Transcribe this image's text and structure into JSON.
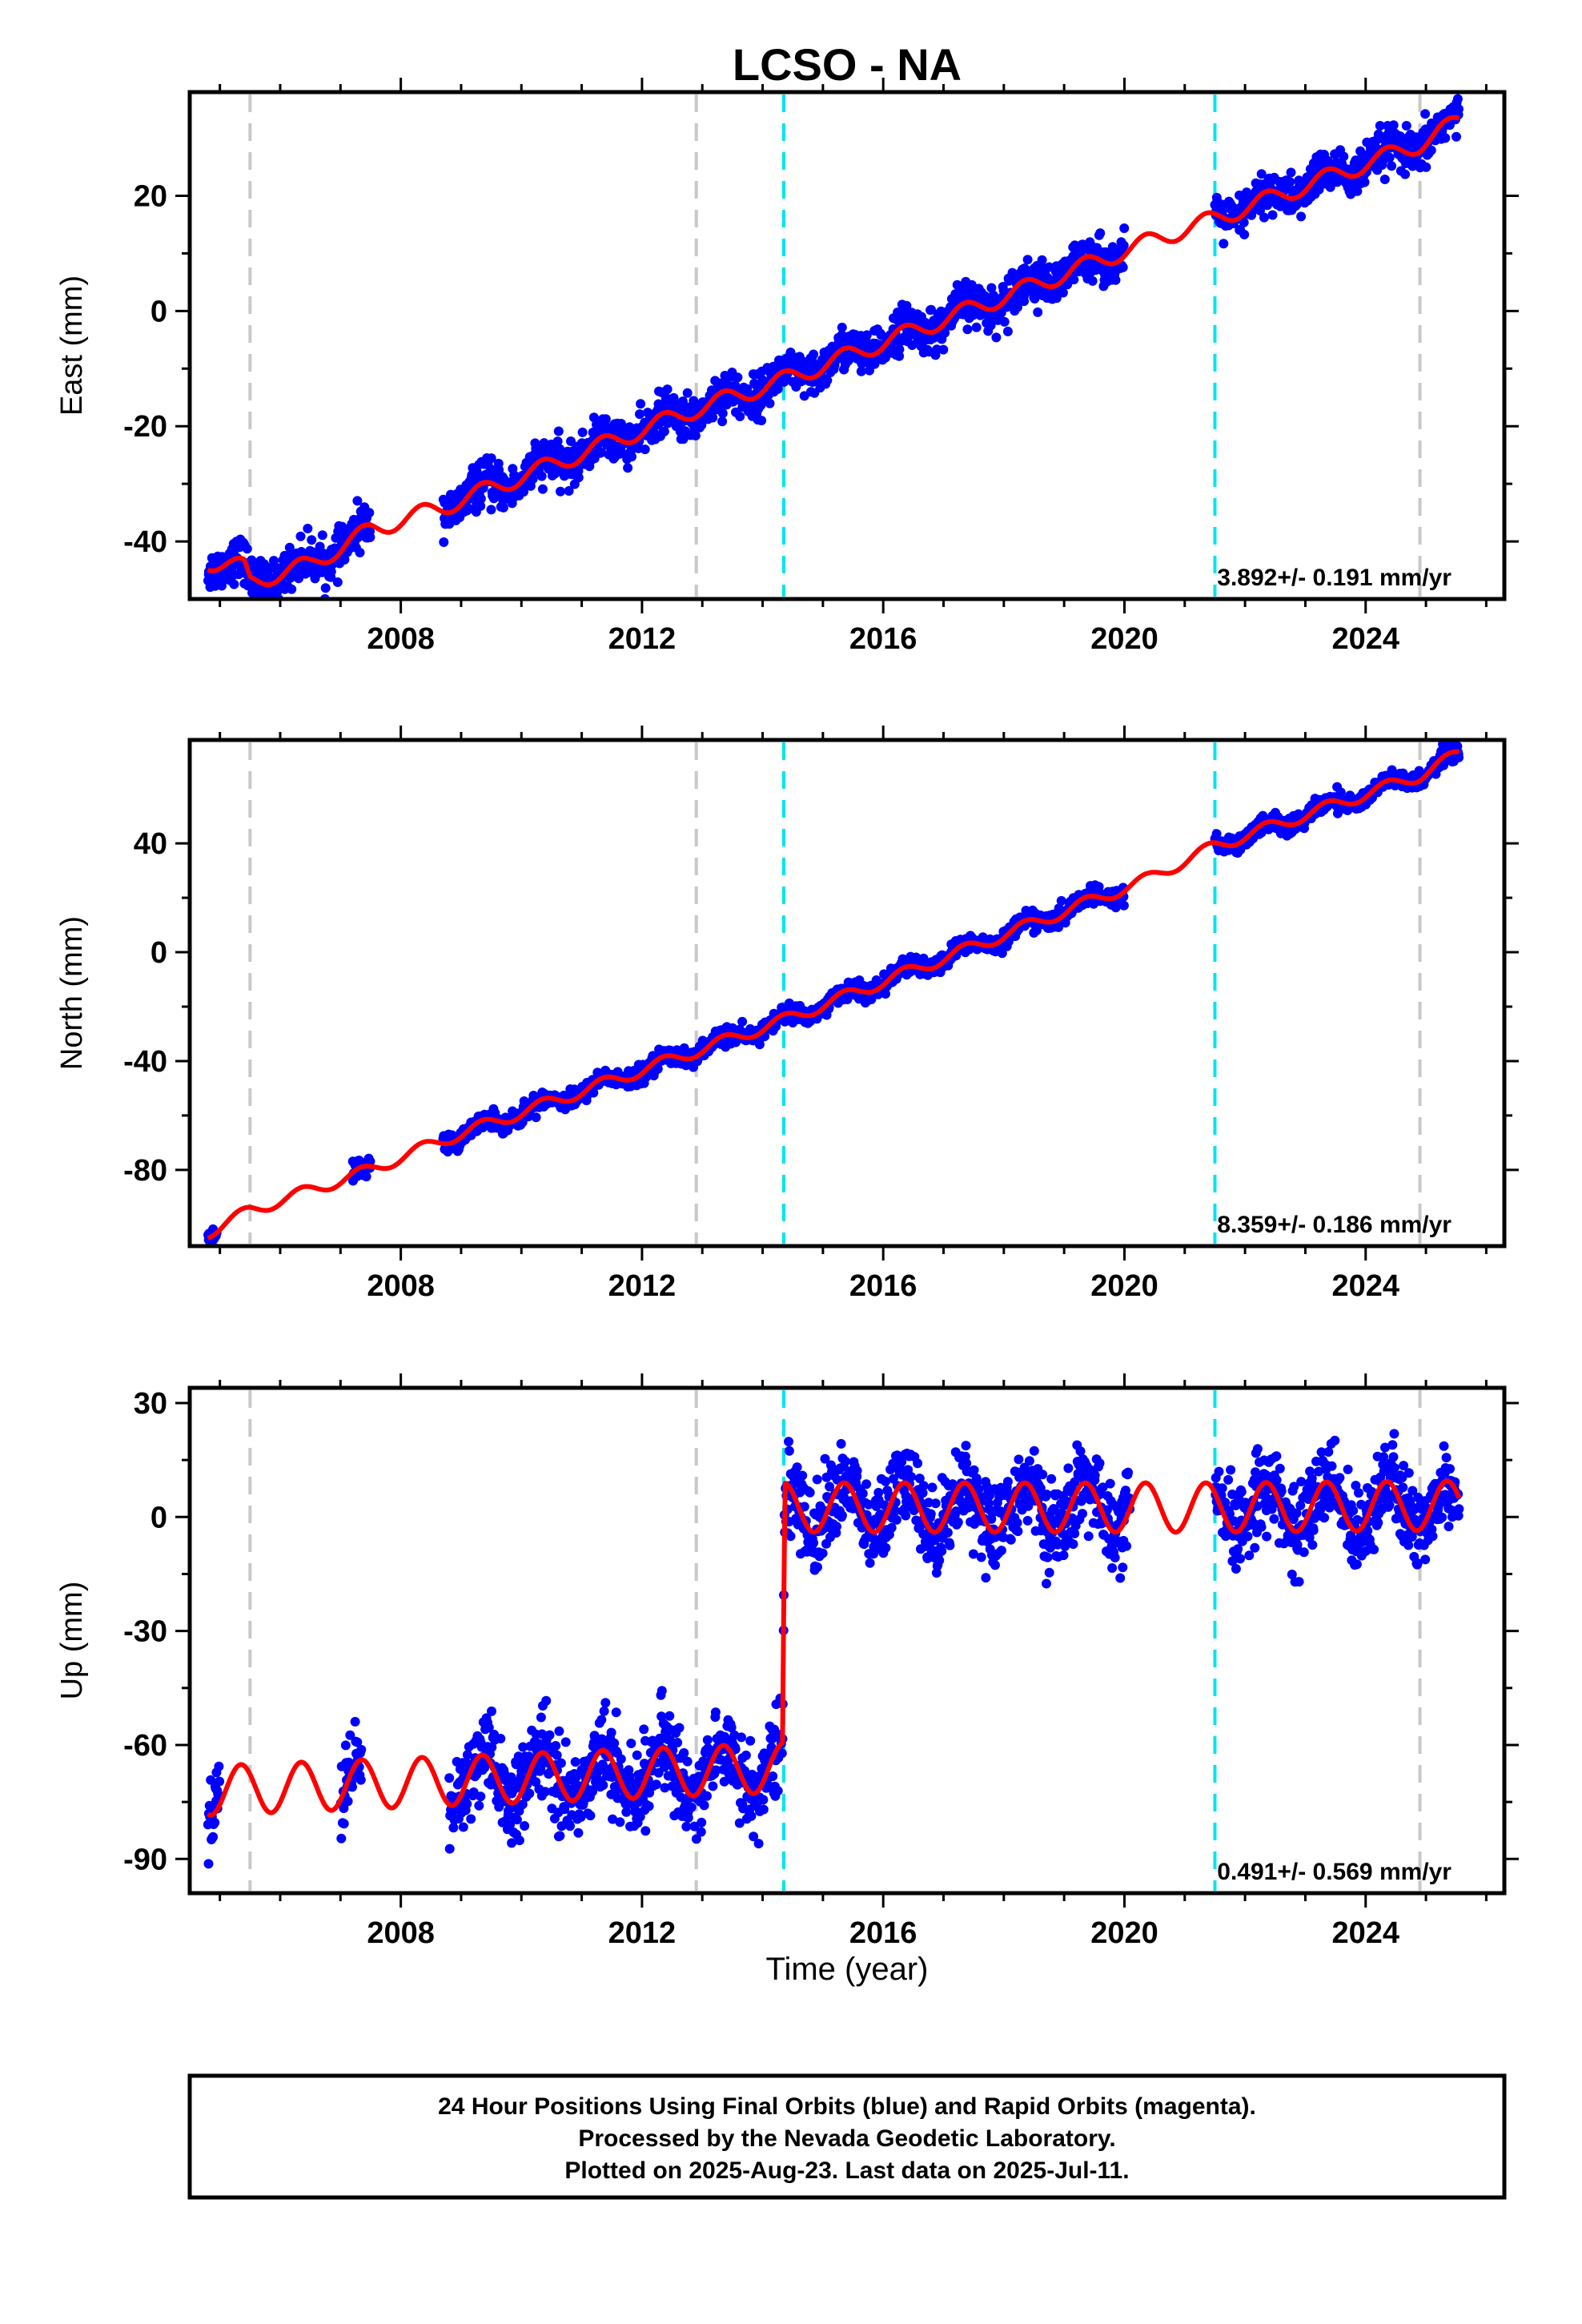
{
  "chart_data": {
    "type": "scatter",
    "title": "LCSO - NA",
    "xlabel": "Time (year)",
    "xlim": [
      2004.5,
      2026.3
    ],
    "x_ticks": [
      "2008",
      "2012",
      "2016",
      "2020",
      "2024"
    ],
    "x_tick_values": [
      2008,
      2012,
      2016,
      2020,
      2024
    ],
    "gray_lines": [
      2005.5,
      2012.9,
      2024.9
    ],
    "cyan_lines": [
      2014.35,
      2021.5
    ],
    "line_colors": {
      "gray": "#c8c8c8",
      "cyan": "#00e5ee",
      "points": "#0000ff",
      "model": "#ff0000"
    },
    "panels": [
      {
        "name": "east",
        "ylabel": "East (mm)",
        "ylim": [
          -50,
          38
        ],
        "y_ticks": [
          "-40",
          "-20",
          "0",
          "20"
        ],
        "y_tick_values": [
          -40,
          -20,
          0,
          20
        ],
        "rate": "3.892+/- 0.191 mm/yr",
        "segments": [
          [
            2004.8,
            2007.5
          ],
          [
            2008.7,
            2014.35
          ],
          [
            2014.35,
            2020.0
          ],
          [
            2021.5,
            2025.55
          ]
        ],
        "noise": 1.8,
        "model": {
          "knots": [
            [
              2004.8,
              -43.5
            ],
            [
              2005.4,
              -44.5
            ],
            [
              2005.5,
              -47
            ],
            [
              2006.5,
              -44
            ],
            [
              2007.5,
              -38
            ],
            [
              2008.7,
              -34
            ],
            [
              2012.9,
              -17
            ],
            [
              2014.35,
              -12
            ],
            [
              2020.4,
              12
            ],
            [
              2021.5,
              16
            ],
            [
              2024.9,
              29
            ],
            [
              2025.55,
              33
            ]
          ],
          "amp": 1.5,
          "steps": [
            [
              2005.5,
              -2.0
            ]
          ]
        }
      },
      {
        "name": "north",
        "ylabel": "North (mm)",
        "ylim": [
          -108,
          78
        ],
        "y_ticks": [
          "-80",
          "-40",
          "0",
          "40"
        ],
        "y_tick_values": [
          -80,
          -40,
          0,
          40
        ],
        "rate": "8.359+/- 0.186 mm/yr",
        "segments": [
          [
            2004.8,
            2004.95
          ],
          [
            2007.2,
            2007.5
          ],
          [
            2008.7,
            2014.35
          ],
          [
            2014.35,
            2020.0
          ],
          [
            2021.5,
            2025.55
          ]
        ],
        "noise": 1.6,
        "model": {
          "knots": [
            [
              2004.8,
              -103
            ],
            [
              2005.5,
              -95
            ],
            [
              2007.5,
              -80
            ],
            [
              2008.7,
              -69
            ],
            [
              2014.35,
              -25
            ],
            [
              2020.4,
              27
            ],
            [
              2021.5,
              39
            ],
            [
              2024.9,
              65
            ],
            [
              2025.55,
              73
            ]
          ],
          "amp": 2.2,
          "steps": []
        }
      },
      {
        "name": "up",
        "ylabel": "Up (mm)",
        "ylim": [
          -99,
          34
        ],
        "y_ticks": [
          "-90",
          "-60",
          "-30",
          "0",
          "30"
        ],
        "y_tick_values": [
          -90,
          -60,
          -30,
          0,
          30
        ],
        "rate": "0.491+/- 0.569 mm/yr",
        "segments": [
          [
            2004.8,
            2005.0
          ],
          [
            2007.0,
            2007.35
          ],
          [
            2008.8,
            2014.35
          ],
          [
            2014.35,
            2020.1
          ],
          [
            2021.5,
            2025.55
          ]
        ],
        "noise": 5.5,
        "model": {
          "knots": [
            [
              2004.8,
              -72
            ],
            [
              2014.33,
              -66
            ],
            [
              2014.37,
              2.5
            ],
            [
              2021.5,
              2.5
            ],
            [
              2025.55,
              3
            ]
          ],
          "amp": 6.5,
          "steps": []
        }
      }
    ]
  },
  "footer": {
    "line1": "24 Hour Positions Using Final Orbits (blue) and Rapid Orbits (magenta).",
    "line2": "Processed by the Nevada Geodetic Laboratory.",
    "line3": "Plotted on 2025-Aug-23. Last data on 2025-Jul-11."
  }
}
